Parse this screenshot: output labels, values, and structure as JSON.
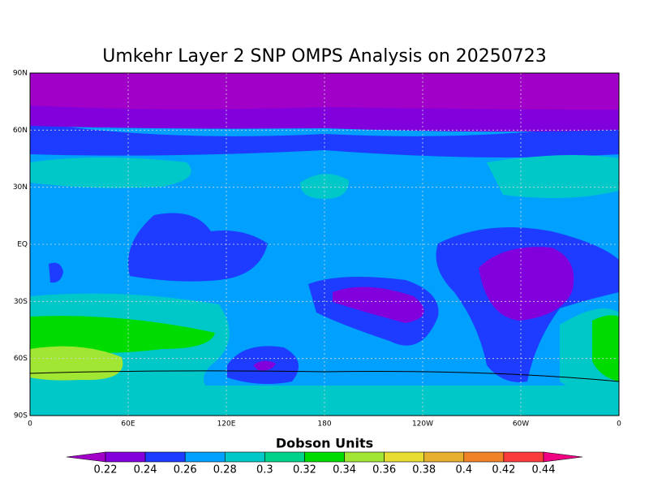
{
  "map": {
    "title": "Umkehr Layer 2 SNP OMPS Analysis on 20250723",
    "lat_ticks": [
      {
        "value": 90,
        "label": "90N"
      },
      {
        "value": 60,
        "label": "60N"
      },
      {
        "value": 30,
        "label": "30N"
      },
      {
        "value": 0,
        "label": "EQ"
      },
      {
        "value": -30,
        "label": "30S"
      },
      {
        "value": -60,
        "label": "60S"
      },
      {
        "value": -90,
        "label": "90S"
      }
    ],
    "lon_ticks": [
      0,
      {
        "value": 60,
        "label": "60E"
      },
      {
        "value": 120,
        "label": "120E"
      },
      180,
      {
        "value": 240,
        "label": "120W"
      },
      {
        "value": 300,
        "label": "60W"
      },
      {
        "value": 360,
        "label": "0"
      }
    ],
    "colorbar": {
      "label": "Dobson Units",
      "ticks": [
        0.22,
        0.24,
        0.26,
        0.28,
        0.3,
        0.32,
        0.34,
        0.36,
        0.38,
        0.4,
        0.42,
        0.44
      ],
      "colors": [
        "#a000c8",
        "#8200dc",
        "#1e3cff",
        "#00a0ff",
        "#00c8c8",
        "#00d28c",
        "#00dc00",
        "#a0e632",
        "#e6dc32",
        "#e6af2d",
        "#f08228",
        "#fa3c3c",
        "#f00082"
      ]
    }
  }
}
